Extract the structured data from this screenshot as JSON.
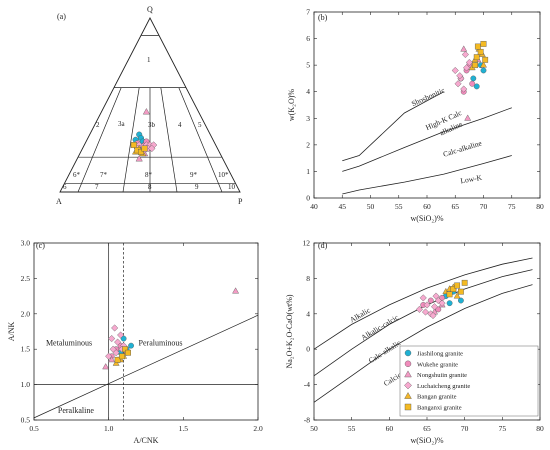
{
  "panels": {
    "a": {
      "label": "(a)"
    },
    "b": {
      "label": "(b)"
    },
    "c": {
      "label": "(c)"
    },
    "d": {
      "label": "(d)"
    }
  },
  "legend": {
    "items": [
      {
        "name": "Jiashilong granite",
        "marker": "circle",
        "color": "#1fb1d3"
      },
      {
        "name": "Wukehe granite",
        "marker": "circle",
        "color": "#f08bbb"
      },
      {
        "name": "Nongshuiin granite",
        "marker": "triangle",
        "color": "#f39bc4"
      },
      {
        "name": "Luchaicheng granite",
        "marker": "diamond",
        "color": "#f7a9cf"
      },
      {
        "name": "Bangan granite",
        "marker": "triangle",
        "color": "#f3b62a"
      },
      {
        "name": "Banganxi granite",
        "marker": "square",
        "color": "#f4ba23"
      }
    ]
  },
  "chart_data": [
    {
      "type": "scatter",
      "panel": "(a)",
      "title": "",
      "vertices": [
        "Q",
        "A",
        "P"
      ],
      "field_labels": [
        "1",
        "2",
        "3a",
        "3b",
        "4",
        "5",
        "6*",
        "7*",
        "8*",
        "9*",
        "10*",
        "6",
        "7",
        "8",
        "9",
        "10"
      ],
      "series": [
        {
          "name": "Jiashilong granite",
          "points": [
            [
              0.42,
              0.3
            ],
            [
              0.44,
              0.33
            ],
            [
              0.45,
              0.31
            ],
            [
              0.46,
              0.29
            ]
          ]
        },
        {
          "name": "Wukehe granite",
          "points": [
            [
              0.43,
              0.28
            ],
            [
              0.47,
              0.27
            ],
            [
              0.45,
              0.26
            ],
            [
              0.48,
              0.29
            ]
          ]
        },
        {
          "name": "Nongshuiin granite",
          "points": [
            [
              0.48,
              0.46
            ],
            [
              0.44,
              0.19
            ],
            [
              0.47,
              0.22
            ]
          ]
        },
        {
          "name": "Luchaicheng granite",
          "points": [
            [
              0.44,
              0.27
            ],
            [
              0.46,
              0.26
            ],
            [
              0.48,
              0.27
            ],
            [
              0.5,
              0.27
            ],
            [
              0.52,
              0.27
            ],
            [
              0.45,
              0.24
            ],
            [
              0.47,
              0.24
            ],
            [
              0.49,
              0.25
            ],
            [
              0.43,
              0.25
            ],
            [
              0.51,
              0.25
            ]
          ]
        },
        {
          "name": "Bangan granite",
          "points": [
            [
              0.42,
              0.23
            ],
            [
              0.44,
              0.25
            ],
            [
              0.46,
              0.22
            ]
          ]
        },
        {
          "name": "Banganxi granite",
          "points": [
            [
              0.41,
              0.27
            ],
            [
              0.43,
              0.24
            ],
            [
              0.45,
              0.23
            ],
            [
              0.47,
              0.25
            ]
          ]
        }
      ]
    },
    {
      "type": "scatter",
      "panel": "(b)",
      "xlabel": "w(SiO₂)%",
      "ylabel": "w(K₂O)%",
      "xlim": [
        40,
        80
      ],
      "ylim": [
        0,
        7
      ],
      "xticks": [
        40,
        45,
        50,
        55,
        60,
        65,
        70,
        75,
        80
      ],
      "yticks": [
        0,
        1,
        2,
        3,
        4,
        5,
        6,
        7
      ],
      "boundaries": [
        {
          "name": "Shoshonitic / High-K Calc-alkaline",
          "x": [
            45,
            48,
            56,
            63
          ],
          "y": [
            1.4,
            1.6,
            3.2,
            4.0
          ]
        },
        {
          "name": "High-K Calc-alkaline / Calc-alkaline",
          "x": [
            45,
            48,
            56,
            63,
            70,
            75
          ],
          "y": [
            1.0,
            1.2,
            1.9,
            2.5,
            3.0,
            3.4
          ]
        },
        {
          "name": "Calc-alkaline / Low-K",
          "x": [
            45,
            48,
            56,
            63,
            70,
            75
          ],
          "y": [
            0.15,
            0.3,
            0.6,
            0.9,
            1.3,
            1.6
          ]
        }
      ],
      "field_labels": [
        "Shoshonitic",
        "High-K Calc alkaline",
        "Calc-alkaline",
        "Low-K"
      ],
      "series": [
        {
          "name": "Jiashilong granite",
          "x": [
            68.2,
            69.5,
            70.0,
            68.8
          ],
          "y": [
            4.5,
            5.0,
            4.8,
            4.2
          ]
        },
        {
          "name": "Wukehe granite",
          "x": [
            66.0,
            67.0,
            67.5,
            68.0,
            66.5
          ],
          "y": [
            4.5,
            4.8,
            5.0,
            4.3,
            4.0
          ]
        },
        {
          "name": "Nongshuiin granite",
          "x": [
            67.2,
            69.0,
            66.5
          ],
          "y": [
            3.0,
            5.2,
            5.6
          ]
        },
        {
          "name": "Luchaicheng granite",
          "x": [
            65.0,
            66.0,
            67.0,
            66.5,
            65.5,
            67.5,
            66.8,
            65.8
          ],
          "y": [
            4.8,
            4.5,
            4.9,
            4.1,
            4.3,
            5.1,
            5.4,
            4.6
          ]
        },
        {
          "name": "Bangan granite",
          "x": [
            68.5,
            69.2,
            70.0,
            69.8,
            68.0
          ],
          "y": [
            5.2,
            5.6,
            5.0,
            5.4,
            4.9
          ]
        },
        {
          "name": "Banganxi granite",
          "x": [
            68.8,
            69.5,
            70.0,
            68.5,
            69.0,
            70.3
          ],
          "y": [
            5.3,
            5.5,
            5.8,
            5.0,
            5.7,
            5.2
          ]
        }
      ]
    },
    {
      "type": "scatter",
      "panel": "(c)",
      "xlabel": "A/CNK",
      "ylabel": "A/NK",
      "xlim": [
        0.5,
        2.0
      ],
      "ylim": [
        0.5,
        3.0
      ],
      "xticks": [
        0.5,
        1.0,
        1.5,
        2.0
      ],
      "yticks": [
        0.5,
        1.0,
        1.5,
        2.0,
        2.5,
        3.0
      ],
      "reference_lines": {
        "vertical_solid": 1.0,
        "vertical_dashed": 1.1,
        "horizontal": 1.0
      },
      "field_labels": [
        "Metaluminous",
        "Peraluminous",
        "Peralkaline"
      ],
      "series": [
        {
          "name": "Jiashilong granite",
          "x": [
            1.08,
            1.12,
            1.15,
            1.1
          ],
          "y": [
            1.45,
            1.5,
            1.55,
            1.65
          ]
        },
        {
          "name": "Wukehe granite",
          "x": [
            1.02,
            1.05,
            1.08,
            1.12,
            1.06
          ],
          "y": [
            1.4,
            1.5,
            1.55,
            1.45,
            1.35
          ]
        },
        {
          "name": "Nongshuiin granite",
          "x": [
            1.85,
            0.98,
            1.02
          ],
          "y": [
            2.32,
            1.25,
            1.35
          ]
        },
        {
          "name": "Luchaicheng granite",
          "x": [
            1.0,
            1.03,
            1.06,
            1.08,
            1.1,
            1.05,
            1.02,
            1.07,
            1.04,
            1.09
          ],
          "y": [
            1.4,
            1.5,
            1.6,
            1.7,
            1.55,
            1.45,
            1.65,
            1.35,
            1.8,
            1.5
          ]
        },
        {
          "name": "Bangan granite",
          "x": [
            1.05,
            1.08,
            1.1,
            1.12
          ],
          "y": [
            1.3,
            1.35,
            1.4,
            1.45
          ]
        },
        {
          "name": "Banganxi granite",
          "x": [
            1.06,
            1.09,
            1.11,
            1.13
          ],
          "y": [
            1.35,
            1.4,
            1.5,
            1.45
          ]
        }
      ]
    },
    {
      "type": "scatter",
      "panel": "(d)",
      "xlabel": "w(SiO₂)%",
      "ylabel": "Na₂O+K₂O-CaO(wt%)",
      "xlim": [
        50,
        80
      ],
      "ylim": [
        -8,
        12
      ],
      "xticks": [
        50,
        55,
        60,
        65,
        70,
        75,
        80
      ],
      "yticks": [
        -8,
        -4,
        0,
        4,
        8,
        12
      ],
      "boundaries": [
        {
          "name": "Alkalic / Alkalic-calcic",
          "x": [
            50,
            55,
            60,
            65,
            70,
            75,
            79
          ],
          "y": [
            0.0,
            2.8,
            5.0,
            6.9,
            8.4,
            9.6,
            10.3
          ]
        },
        {
          "name": "Alkalic-calcic / Calc-alkalic",
          "x": [
            50,
            55,
            60,
            65,
            70,
            75,
            79
          ],
          "y": [
            -3.0,
            0.0,
            2.8,
            5.0,
            6.8,
            8.2,
            9.0
          ]
        },
        {
          "name": "Calc-alkalic / Calcic",
          "x": [
            50,
            55,
            60,
            65,
            70,
            75,
            79
          ],
          "y": [
            -6.0,
            -3.0,
            0.0,
            2.5,
            4.6,
            6.3,
            7.3
          ]
        }
      ],
      "field_labels": [
        "Alkalic",
        "Alkalic-calcic",
        "Calc-alkalic",
        "Calcic"
      ],
      "series": [
        {
          "name": "Jiashilong granite",
          "x": [
            67.5,
            68.5,
            69.5,
            68.0
          ],
          "y": [
            6.0,
            6.5,
            5.5,
            5.2
          ]
        },
        {
          "name": "Wukehe granite",
          "x": [
            64.5,
            65.5,
            66.5,
            67.0
          ],
          "y": [
            5.0,
            5.5,
            4.5,
            5.8
          ]
        },
        {
          "name": "Nongshuiin granite",
          "x": [
            66.0,
            67.0
          ],
          "y": [
            4.2,
            5.0
          ]
        },
        {
          "name": "Luchaicheng granite",
          "x": [
            64.0,
            65.0,
            66.0,
            66.5,
            65.5,
            64.5,
            67.0,
            65.8,
            66.2,
            64.8
          ],
          "y": [
            4.5,
            5.0,
            4.8,
            5.5,
            4.0,
            5.8,
            5.2,
            3.8,
            6.0,
            4.2
          ]
        },
        {
          "name": "Bangan granite",
          "x": [
            67.5,
            68.5,
            69.0,
            68.0
          ],
          "y": [
            6.5,
            7.0,
            6.0,
            6.8
          ]
        },
        {
          "name": "Banganxi granite",
          "x": [
            68.5,
            69.0,
            70.0,
            69.5,
            68.0
          ],
          "y": [
            6.8,
            7.2,
            7.5,
            6.5,
            6.2
          ]
        }
      ]
    }
  ]
}
